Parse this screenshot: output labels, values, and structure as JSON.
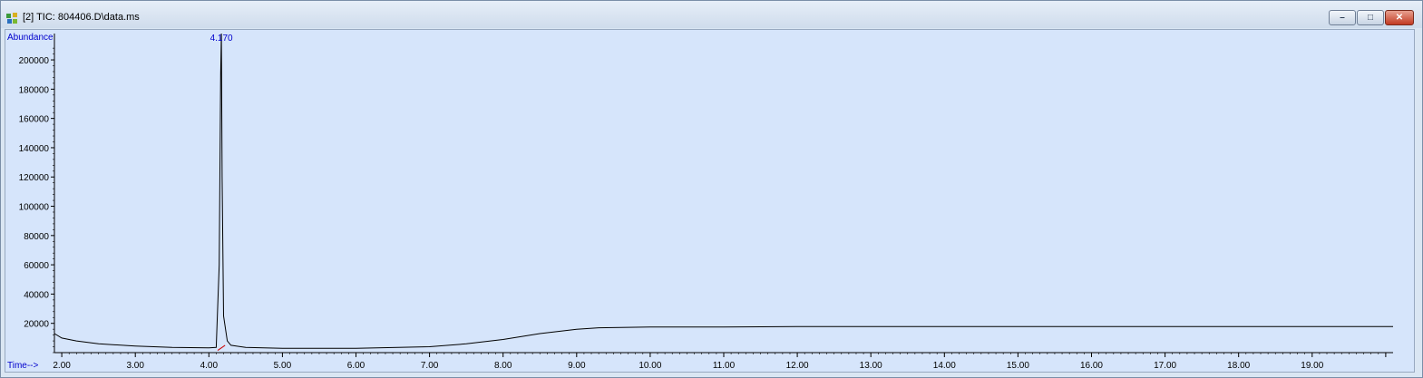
{
  "window": {
    "title": "[2] TIC: 804406.D\\data.ms",
    "controls": {
      "minimize": "–",
      "maximize": "□",
      "close": "✕"
    },
    "colors": {
      "plot_bg": "#d6e5fb",
      "trace": "#000000",
      "labels": "#0000cc",
      "baseline_mark": "#cc0000"
    }
  },
  "chart_data": {
    "type": "line",
    "ylabel": "Abundance",
    "xlabel": "Time-->",
    "x_ticks": [
      "2.00",
      "3.00",
      "4.00",
      "5.00",
      "6.00",
      "7.00",
      "8.00",
      "9.00",
      "10.00",
      "11.00",
      "12.00",
      "13.00",
      "14.00",
      "15.00",
      "16.00",
      "17.00",
      "18.00",
      "19.00"
    ],
    "y_ticks": [
      "20000",
      "40000",
      "60000",
      "80000",
      "100000",
      "120000",
      "140000",
      "160000",
      "180000",
      "200000"
    ],
    "xlim": [
      1.9,
      20.1
    ],
    "ylim": [
      0,
      218000
    ],
    "peak_label": "4.170",
    "series": [
      {
        "x": [
          1.9,
          2.0,
          2.2,
          2.5,
          3.0,
          3.5,
          4.0,
          4.1,
          4.14,
          4.16,
          4.17,
          4.18,
          4.2,
          4.25,
          4.3,
          4.5,
          5.0,
          6.0,
          7.0,
          7.5,
          8.0,
          8.5,
          9.0,
          9.3,
          10.0,
          11.0,
          12.0,
          13.0,
          14.0,
          15.0,
          16.0,
          17.0,
          18.0,
          19.0,
          20.1
        ],
        "y": [
          13000,
          10000,
          8000,
          6000,
          4500,
          3500,
          3200,
          3500,
          60000,
          190000,
          225000,
          120000,
          25000,
          8000,
          5000,
          3500,
          3000,
          3000,
          4000,
          6000,
          9000,
          13000,
          16000,
          17000,
          17500,
          17500,
          17800,
          17800,
          17800,
          17800,
          17800,
          17800,
          17800,
          17800,
          17800
        ]
      }
    ]
  }
}
